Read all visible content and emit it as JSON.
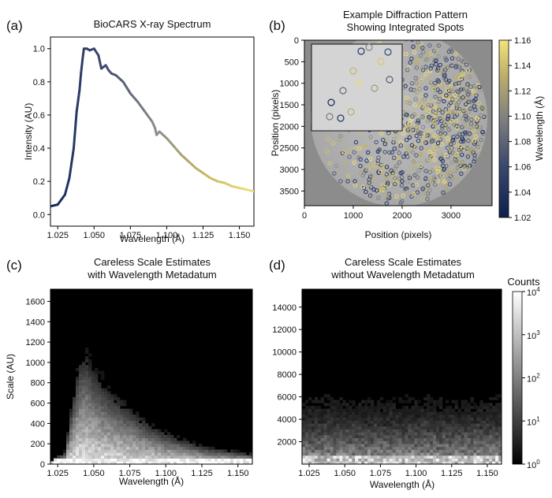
{
  "panels": [
    {
      "id": "a",
      "label": "(a)"
    },
    {
      "id": "b",
      "label": "(b)"
    },
    {
      "id": "c",
      "label": "(c)"
    },
    {
      "id": "d",
      "label": "(d)"
    }
  ],
  "chart_data": [
    {
      "panel": "(a)",
      "type": "line",
      "title": "BioCARS X-ray Spectrum",
      "xlabel": "Wavelength (Å)",
      "ylabel": "Intensity (AU)",
      "xlim": [
        1.02,
        1.16
      ],
      "ylim": [
        -0.07,
        1.07
      ],
      "xticks": [
        "1.025",
        "1.050",
        "1.075",
        "1.100",
        "1.125",
        "1.150"
      ],
      "yticks": [
        "0.0",
        "0.2",
        "0.4",
        "0.6",
        "0.8",
        "1.0"
      ],
      "grid": false,
      "colormap": [
        "#17285e",
        "#3d4a6e",
        "#8a8a8a",
        "#c9b860",
        "#f3e47a"
      ],
      "x": [
        1.02,
        1.025,
        1.03,
        1.033,
        1.036,
        1.038,
        1.04,
        1.041,
        1.042,
        1.043,
        1.045,
        1.047,
        1.05,
        1.053,
        1.055,
        1.058,
        1.06,
        1.062,
        1.065,
        1.07,
        1.075,
        1.08,
        1.085,
        1.09,
        1.092,
        1.093,
        1.095,
        1.1,
        1.105,
        1.11,
        1.115,
        1.12,
        1.125,
        1.13,
        1.135,
        1.14,
        1.145,
        1.15,
        1.155,
        1.16
      ],
      "y": [
        0.05,
        0.06,
        0.12,
        0.22,
        0.4,
        0.62,
        0.75,
        0.85,
        0.93,
        1.0,
        1.0,
        0.99,
        1.0,
        0.96,
        0.88,
        0.9,
        0.87,
        0.85,
        0.84,
        0.8,
        0.73,
        0.68,
        0.62,
        0.56,
        0.52,
        0.48,
        0.5,
        0.46,
        0.41,
        0.36,
        0.32,
        0.28,
        0.25,
        0.22,
        0.2,
        0.19,
        0.17,
        0.16,
        0.15,
        0.14
      ]
    },
    {
      "panel": "(b)",
      "type": "scatter",
      "title": "Example Diffraction Pattern\nShowing Integrated Spots",
      "xlabel": "Position (pixels)",
      "ylabel": "Position (pixels)",
      "xlim": [
        0,
        3840
      ],
      "ylim": [
        3840,
        0
      ],
      "xticks": [
        "0",
        "1000",
        "2000",
        "3000"
      ],
      "yticks": [
        "0",
        "500",
        "1000",
        "1500",
        "2000",
        "2500",
        "3000",
        "3500"
      ],
      "colorbar": {
        "label": "Wavelength (Å)",
        "range": [
          1.02,
          1.16
        ],
        "ticks": [
          "1.02",
          "1.04",
          "1.06",
          "1.08",
          "1.10",
          "1.12",
          "1.14",
          "1.16"
        ]
      },
      "inset": true
    },
    {
      "panel": "(c)",
      "type": "heatmap",
      "title": "Careless Scale Estimates\nwith Wavelength Metadatum",
      "xlabel": "Wavelength (Å)",
      "ylabel": "Scale (AU)",
      "xlim": [
        1.02,
        1.16
      ],
      "ylim": [
        0,
        1720
      ],
      "xticks": [
        "1.025",
        "1.050",
        "1.075",
        "1.100",
        "1.125",
        "1.150"
      ],
      "yticks": [
        "0",
        "200",
        "400",
        "600",
        "800",
        "1000",
        "1200",
        "1400",
        "1600"
      ],
      "envelope_x": [
        1.02,
        1.03,
        1.035,
        1.04,
        1.045,
        1.05,
        1.06,
        1.07,
        1.08,
        1.09,
        1.1,
        1.11,
        1.12,
        1.13,
        1.14,
        1.15,
        1.16
      ],
      "envelope_top": [
        30,
        120,
        600,
        1000,
        1050,
        900,
        720,
        600,
        480,
        380,
        300,
        250,
        200,
        160,
        140,
        120,
        100
      ]
    },
    {
      "panel": "(d)",
      "type": "heatmap",
      "title": "Careless Scale Estimates\nwithout Wavelength Metadatum",
      "xlabel": "Wavelength (Å)",
      "ylabel": "",
      "xlim": [
        1.02,
        1.16
      ],
      "ylim": [
        0,
        15600
      ],
      "xticks": [
        "1.025",
        "1.050",
        "1.075",
        "1.100",
        "1.125",
        "1.150"
      ],
      "yticks": [
        "2000",
        "4000",
        "6000",
        "8000",
        "10000",
        "12000",
        "14000"
      ],
      "envelope_top": 5500,
      "colorbar": {
        "label": "Counts",
        "scale": "log",
        "range": [
          1,
          10000
        ],
        "ticks": [
          "10",
          "10",
          "10",
          "10",
          "10"
        ],
        "exponents": [
          "0",
          "1",
          "2",
          "3",
          "4"
        ]
      }
    }
  ]
}
